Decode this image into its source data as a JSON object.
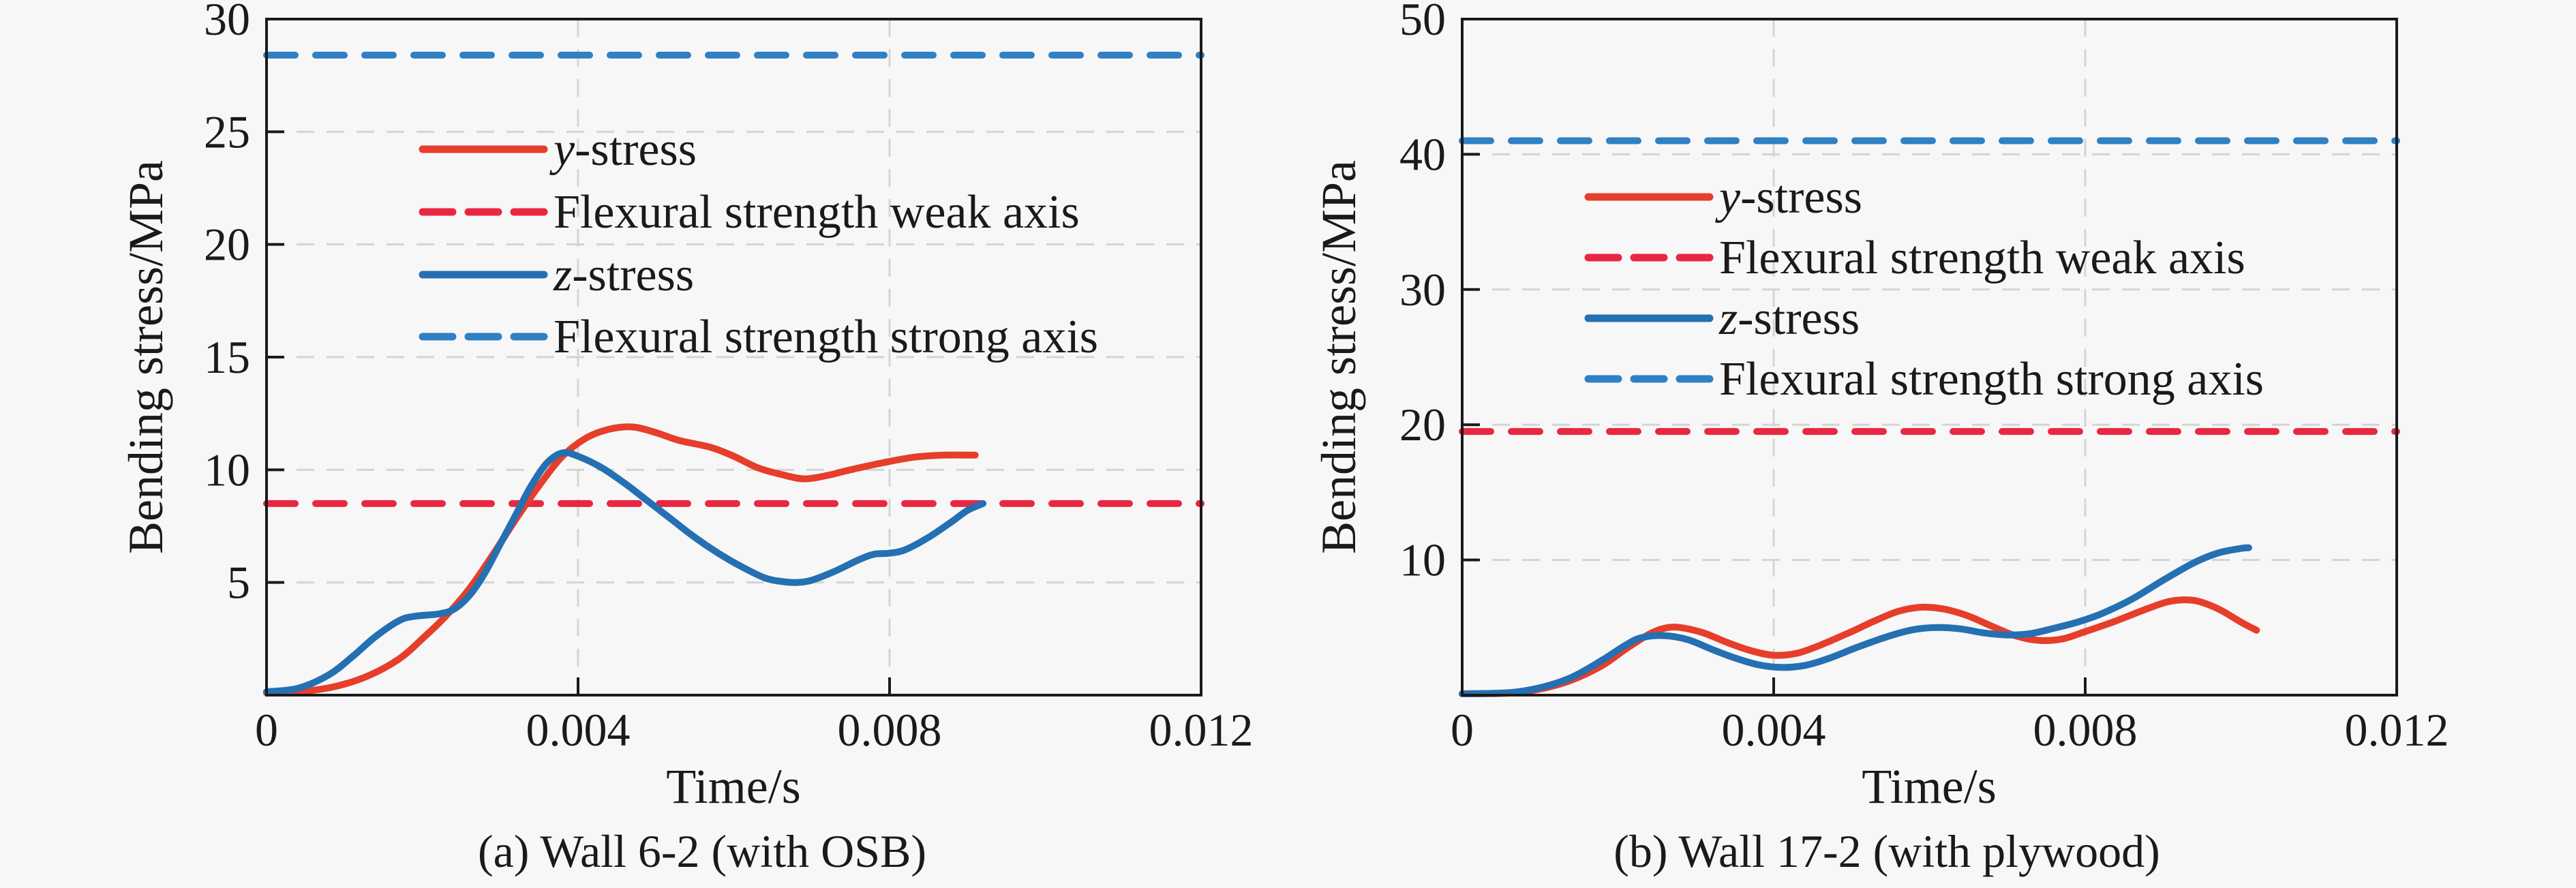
{
  "figure": {
    "background": "#f7f7f7",
    "text_color": "#1a1a1a",
    "axis_color": "#1a1a1a",
    "grid_color": "#d4d4d4"
  },
  "chart_data": [
    {
      "id": "a",
      "type": "line",
      "title": "(a) Wall 6-2 (with OSB)",
      "xlabel": "Time/s",
      "ylabel": "Bending stress/MPa",
      "xlim": [
        0,
        0.012
      ],
      "ylim": [
        0,
        30
      ],
      "xticks": [
        0,
        0.004,
        0.008,
        0.012
      ],
      "xtick_labels": [
        "0",
        "0.004",
        "0.008",
        "0.012"
      ],
      "yticks": [
        5,
        10,
        15,
        20,
        25,
        30
      ],
      "ytick_labels": [
        "5",
        "10",
        "15",
        "20",
        "25",
        "30"
      ],
      "grid_x": [
        0.004,
        0.008
      ],
      "grid_y": [
        5,
        10,
        15,
        20,
        25
      ],
      "grid_on": true,
      "legend_position": "upper-left-inside",
      "thresholds": [
        {
          "name": "flexural-strength-weak-axis",
          "value": 8.5,
          "color": "#e82741",
          "style": "dashed"
        },
        {
          "name": "flexural-strength-strong-axis",
          "value": 28.4,
          "color": "#2f80c4",
          "style": "dashed"
        }
      ],
      "series": [
        {
          "name": "y-stress",
          "color": "#e63e2b",
          "style": "solid",
          "points": [
            [
              0,
              0.1
            ],
            [
              0.0005,
              0.18
            ],
            [
              0.0009,
              0.4
            ],
            [
              0.0013,
              0.85
            ],
            [
              0.0017,
              1.6
            ],
            [
              0.002,
              2.5
            ],
            [
              0.0023,
              3.5
            ],
            [
              0.0026,
              4.7
            ],
            [
              0.0029,
              6.2
            ],
            [
              0.0032,
              7.8
            ],
            [
              0.0035,
              9.3
            ],
            [
              0.0038,
              10.6
            ],
            [
              0.0041,
              11.4
            ],
            [
              0.0044,
              11.8
            ],
            [
              0.0047,
              11.9
            ],
            [
              0.005,
              11.65
            ],
            [
              0.0053,
              11.3
            ],
            [
              0.0057,
              11.0
            ],
            [
              0.006,
              10.6
            ],
            [
              0.0063,
              10.1
            ],
            [
              0.0066,
              9.8
            ],
            [
              0.0069,
              9.6
            ],
            [
              0.0072,
              9.75
            ],
            [
              0.0075,
              10.0
            ],
            [
              0.0079,
              10.3
            ],
            [
              0.0083,
              10.55
            ],
            [
              0.0087,
              10.65
            ],
            [
              0.0091,
              10.65
            ]
          ]
        },
        {
          "name": "z-stress",
          "color": "#2470b2",
          "style": "solid",
          "points": [
            [
              0,
              0.15
            ],
            [
              0.0004,
              0.3
            ],
            [
              0.0008,
              0.9
            ],
            [
              0.0011,
              1.7
            ],
            [
              0.0014,
              2.6
            ],
            [
              0.0017,
              3.3
            ],
            [
              0.0019,
              3.5
            ],
            [
              0.0022,
              3.6
            ],
            [
              0.0024,
              3.8
            ],
            [
              0.0026,
              4.4
            ],
            [
              0.0028,
              5.4
            ],
            [
              0.003,
              6.7
            ],
            [
              0.0032,
              8.0
            ],
            [
              0.0034,
              9.3
            ],
            [
              0.0036,
              10.3
            ],
            [
              0.0038,
              10.75
            ],
            [
              0.004,
              10.6
            ],
            [
              0.0043,
              10.1
            ],
            [
              0.0046,
              9.4
            ],
            [
              0.0049,
              8.6
            ],
            [
              0.0052,
              7.8
            ],
            [
              0.0055,
              7.0
            ],
            [
              0.0058,
              6.3
            ],
            [
              0.0061,
              5.7
            ],
            [
              0.0064,
              5.2
            ],
            [
              0.0066,
              5.05
            ],
            [
              0.0068,
              5.0
            ],
            [
              0.007,
              5.1
            ],
            [
              0.0073,
              5.5
            ],
            [
              0.0076,
              6.0
            ],
            [
              0.0078,
              6.25
            ],
            [
              0.008,
              6.3
            ],
            [
              0.0082,
              6.45
            ],
            [
              0.0085,
              7.0
            ],
            [
              0.0088,
              7.7
            ],
            [
              0.009,
              8.2
            ],
            [
              0.0092,
              8.5
            ]
          ]
        }
      ],
      "legend": [
        {
          "italic": "y",
          "text": "-stress",
          "color": "#e63e2b",
          "dash": false
        },
        {
          "italic": "",
          "text": "Flexural strength weak axis",
          "color": "#e82741",
          "dash": true
        },
        {
          "italic": "z",
          "text": "-stress",
          "color": "#2470b2",
          "dash": false
        },
        {
          "italic": "",
          "text": "Flexural strength strong axis",
          "color": "#2f80c4",
          "dash": true
        }
      ]
    },
    {
      "id": "b",
      "type": "line",
      "title": "(b) Wall 17-2 (with plywood)",
      "xlabel": "Time/s",
      "ylabel": "Bending stress/MPa",
      "xlim": [
        0,
        0.012
      ],
      "ylim": [
        0,
        50
      ],
      "xticks": [
        0,
        0.004,
        0.008,
        0.012
      ],
      "xtick_labels": [
        "0",
        "0.004",
        "0.008",
        "0.012"
      ],
      "yticks": [
        10,
        20,
        30,
        40,
        50
      ],
      "ytick_labels": [
        "10",
        "20",
        "30",
        "40",
        "50"
      ],
      "grid_x": [
        0.004,
        0.008
      ],
      "grid_y": [
        10,
        20,
        30,
        40
      ],
      "grid_on": true,
      "legend_position": "upper-left-inside",
      "thresholds": [
        {
          "name": "flexural-strength-weak-axis",
          "value": 19.5,
          "color": "#e82741",
          "style": "dashed"
        },
        {
          "name": "flexural-strength-strong-axis",
          "value": 41.0,
          "color": "#2f80c4",
          "style": "dashed"
        }
      ],
      "series": [
        {
          "name": "y-stress",
          "color": "#e63e2b",
          "style": "solid",
          "points": [
            [
              0,
              0.1
            ],
            [
              0.0006,
              0.15
            ],
            [
              0.001,
              0.45
            ],
            [
              0.0014,
              1.1
            ],
            [
              0.0018,
              2.2
            ],
            [
              0.0021,
              3.4
            ],
            [
              0.0024,
              4.5
            ],
            [
              0.0026,
              4.95
            ],
            [
              0.0028,
              5.0
            ],
            [
              0.0031,
              4.6
            ],
            [
              0.0034,
              3.9
            ],
            [
              0.0037,
              3.3
            ],
            [
              0.004,
              2.95
            ],
            [
              0.0043,
              3.1
            ],
            [
              0.0046,
              3.7
            ],
            [
              0.005,
              4.7
            ],
            [
              0.0053,
              5.5
            ],
            [
              0.0056,
              6.2
            ],
            [
              0.0059,
              6.5
            ],
            [
              0.0062,
              6.35
            ],
            [
              0.0065,
              5.85
            ],
            [
              0.0068,
              5.1
            ],
            [
              0.0071,
              4.4
            ],
            [
              0.0074,
              4.05
            ],
            [
              0.0077,
              4.15
            ],
            [
              0.008,
              4.7
            ],
            [
              0.0084,
              5.5
            ],
            [
              0.0088,
              6.4
            ],
            [
              0.0091,
              6.95
            ],
            [
              0.0094,
              7.0
            ],
            [
              0.0097,
              6.4
            ],
            [
              0.01,
              5.4
            ],
            [
              0.0102,
              4.8
            ]
          ]
        },
        {
          "name": "z-stress",
          "color": "#2470b2",
          "style": "solid",
          "points": [
            [
              0,
              0.1
            ],
            [
              0.0006,
              0.18
            ],
            [
              0.001,
              0.55
            ],
            [
              0.0014,
              1.3
            ],
            [
              0.0018,
              2.6
            ],
            [
              0.0021,
              3.7
            ],
            [
              0.0023,
              4.25
            ],
            [
              0.0026,
              4.4
            ],
            [
              0.0029,
              4.1
            ],
            [
              0.0032,
              3.4
            ],
            [
              0.0035,
              2.75
            ],
            [
              0.0038,
              2.25
            ],
            [
              0.0041,
              2.05
            ],
            [
              0.0044,
              2.2
            ],
            [
              0.0047,
              2.7
            ],
            [
              0.0051,
              3.6
            ],
            [
              0.0055,
              4.4
            ],
            [
              0.0058,
              4.85
            ],
            [
              0.0061,
              5.0
            ],
            [
              0.0064,
              4.9
            ],
            [
              0.0067,
              4.6
            ],
            [
              0.007,
              4.45
            ],
            [
              0.0073,
              4.55
            ],
            [
              0.0076,
              4.95
            ],
            [
              0.0079,
              5.4
            ],
            [
              0.0082,
              6.0
            ],
            [
              0.0086,
              7.1
            ],
            [
              0.009,
              8.5
            ],
            [
              0.0094,
              9.8
            ],
            [
              0.0097,
              10.5
            ],
            [
              0.01,
              10.85
            ],
            [
              0.0101,
              10.9
            ]
          ]
        }
      ],
      "legend": [
        {
          "italic": "y",
          "text": "-stress",
          "color": "#e63e2b",
          "dash": false
        },
        {
          "italic": "",
          "text": "Flexural strength weak axis",
          "color": "#e82741",
          "dash": true
        },
        {
          "italic": "z",
          "text": "-stress",
          "color": "#2470b2",
          "dash": false
        },
        {
          "italic": "",
          "text": "Flexural strength strong axis",
          "color": "#2f80c4",
          "dash": true
        }
      ]
    }
  ]
}
